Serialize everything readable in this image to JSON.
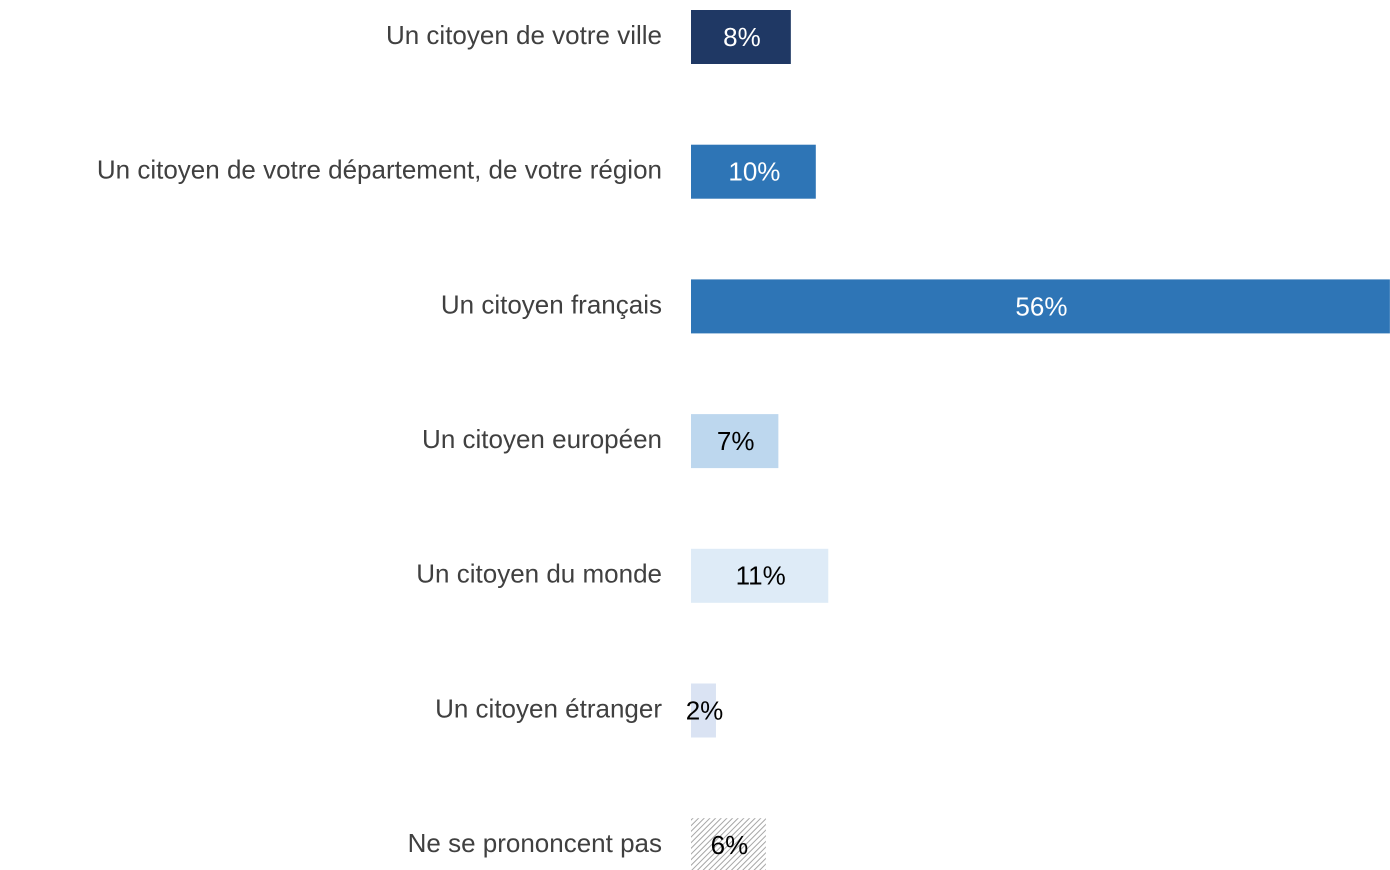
{
  "chart_data": {
    "type": "bar",
    "orientation": "horizontal",
    "categories": [
      "Un citoyen de votre ville",
      "Un citoyen de votre département, de votre région",
      "Un citoyen français",
      "Un citoyen européen",
      "Un citoyen du monde",
      "Un citoyen étranger",
      "Ne se prononcent pas"
    ],
    "values": [
      8,
      10,
      56,
      7,
      11,
      2,
      6
    ],
    "value_labels": [
      "8%",
      "10%",
      "56%",
      "7%",
      "11%",
      "2%",
      "6%"
    ],
    "colors": [
      "#1f3864",
      "#2e75b6",
      "#2e75b6",
      "#bdd7ee",
      "#deebf7",
      "#dae3f3",
      "#a6a6a6"
    ],
    "patterns": [
      null,
      null,
      null,
      null,
      null,
      null,
      "hatch"
    ],
    "label_colors": [
      "#ffffff",
      "#ffffff",
      "#ffffff",
      "#000000",
      "#000000",
      "#000000",
      "#000000"
    ]
  }
}
